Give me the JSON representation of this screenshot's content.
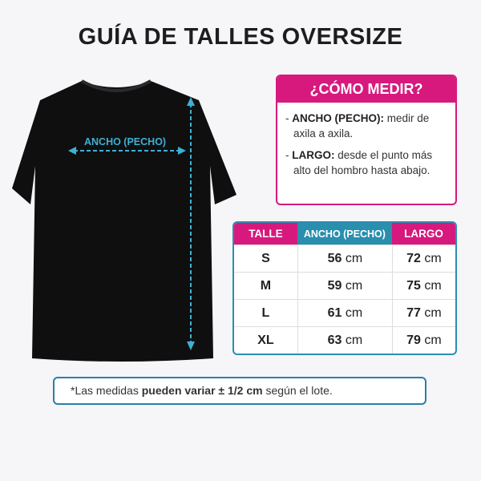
{
  "title": "GUÍA DE TALLES OVERSIZE",
  "diagram": {
    "width_label": "ANCHO (PECHO)",
    "shirt_color": "#0f0f10",
    "arrow_color": "#3fb0d3"
  },
  "how_to": {
    "title": "¿CÓMO MEDIR?",
    "items": [
      {
        "term": "ANCHO (PECHO):",
        "text": "medir de axila a axila."
      },
      {
        "term": "LARGO:",
        "text": "desde el punto más alto del hombro hasta abajo."
      }
    ]
  },
  "size_table": {
    "headers": [
      "TALLE",
      "ANCHO (PECHO)",
      "LARGO"
    ],
    "unit": "cm",
    "rows": [
      {
        "size": "S",
        "ancho": "56",
        "largo": "72"
      },
      {
        "size": "M",
        "ancho": "59",
        "largo": "75"
      },
      {
        "size": "L",
        "ancho": "61",
        "largo": "77"
      },
      {
        "size": "XL",
        "ancho": "63",
        "largo": "79"
      }
    ]
  },
  "note": {
    "prefix": "*Las medidas",
    "bold": "pueden variar ± 1/2 cm",
    "suffix": "según el lote."
  },
  "colors": {
    "pink": "#d7197e",
    "blue": "#2a8ead"
  }
}
